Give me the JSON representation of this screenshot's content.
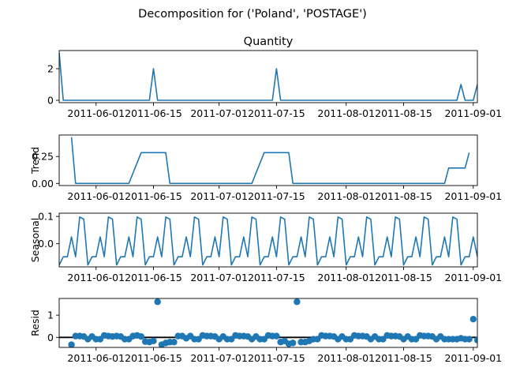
{
  "chart_data": {
    "type": "line",
    "title": "Decomposition for ('Poland', 'POSTAGE')",
    "x_tick_labels": [
      "2011-06-01",
      "2011-06-15",
      "2011-07-01",
      "2011-07-15",
      "2011-08-01",
      "2011-08-15",
      "2011-09-01"
    ],
    "x_start": "2011-05-23",
    "x_end": "2011-09-02",
    "colors": {
      "line": "#1f77b4",
      "zero_line": "#000000"
    },
    "panels": [
      {
        "name": "observed",
        "title": "Quantity",
        "ylabel": "",
        "kind": "line",
        "ylim": [
          -0.15,
          3.15
        ],
        "yticks": [
          0,
          2
        ],
        "ytick_labels": [
          "0",
          "2"
        ],
        "points": [
          [
            "2011-05-23",
            3
          ],
          [
            "2011-05-24",
            0
          ],
          [
            "2011-06-14",
            0
          ],
          [
            "2011-06-15",
            2
          ],
          [
            "2011-06-16",
            0
          ],
          [
            "2011-07-14",
            0
          ],
          [
            "2011-07-15",
            2
          ],
          [
            "2011-07-16",
            0
          ],
          [
            "2011-08-28",
            0
          ],
          [
            "2011-08-29",
            1
          ],
          [
            "2011-08-30",
            0
          ],
          [
            "2011-09-01",
            0
          ],
          [
            "2011-09-02",
            1
          ]
        ]
      },
      {
        "name": "trend",
        "title": "",
        "ylabel": "Trend",
        "kind": "line",
        "ylim": [
          -0.02,
          0.45
        ],
        "yticks": [
          0,
          0.25
        ],
        "ytick_labels": [
          "0.00",
          "0.25"
        ],
        "points": [
          [
            "2011-05-26",
            0.43
          ],
          [
            "2011-05-27",
            0
          ],
          [
            "2011-06-09",
            0
          ],
          [
            "2011-06-12",
            0.286
          ],
          [
            "2011-06-18",
            0.286
          ],
          [
            "2011-06-19",
            0
          ],
          [
            "2011-07-09",
            0
          ],
          [
            "2011-07-12",
            0.286
          ],
          [
            "2011-07-18",
            0.286
          ],
          [
            "2011-07-19",
            0
          ],
          [
            "2011-08-25",
            0
          ],
          [
            "2011-08-26",
            0.143
          ],
          [
            "2011-08-30",
            0.143
          ],
          [
            "2011-08-31",
            0.286
          ]
        ]
      },
      {
        "name": "seasonal",
        "title": "",
        "ylabel": "Seasonal",
        "kind": "line",
        "ylim": [
          -0.085,
          0.112
        ],
        "yticks": [
          0,
          0.1
        ],
        "ytick_labels": [
          "0.0",
          "0.1"
        ],
        "weekly_pattern": [
          -0.078,
          -0.048,
          -0.048,
          0.025,
          -0.048,
          0.098,
          0.09
        ],
        "first_date": "2011-05-23",
        "last_date": "2011-09-02"
      },
      {
        "name": "resid",
        "title": "",
        "ylabel": "Resid",
        "kind": "scatter",
        "ylim": [
          -0.45,
          1.75
        ],
        "yticks": [
          0,
          1
        ],
        "ytick_labels": [
          "0",
          "1"
        ],
        "first_date": "2011-05-26",
        "values": [
          -0.33,
          0.06,
          0.06,
          0.04,
          -0.08,
          0.04,
          -0.08,
          -0.08,
          0.09,
          0.06,
          0.04,
          0.06,
          0.04,
          -0.08,
          -0.08,
          0.06,
          0.09,
          0.04,
          -0.19,
          -0.21,
          -0.16,
          1.6,
          -0.33,
          -0.25,
          -0.21,
          -0.21,
          0.06,
          0.06,
          -0.04,
          0.06,
          -0.08,
          -0.08,
          0.09,
          0.06,
          0.06,
          0.04,
          -0.08,
          0.04,
          -0.08,
          -0.08,
          0.09,
          0.06,
          0.06,
          0.04,
          -0.08,
          0.04,
          -0.08,
          -0.08,
          0.09,
          0.06,
          0.06,
          -0.21,
          -0.16,
          -0.29,
          -0.25,
          1.6,
          -0.21,
          -0.21,
          -0.16,
          -0.08,
          -0.08,
          0.09,
          0.06,
          0.06,
          0.04,
          -0.08,
          0.04,
          -0.08,
          -0.08,
          0.09,
          0.06,
          0.06,
          0.04,
          -0.08,
          0.04,
          -0.08,
          -0.08,
          0.09,
          0.06,
          0.06,
          0.04,
          -0.08,
          0.04,
          -0.08,
          -0.08,
          0.09,
          0.06,
          0.06,
          0.04,
          -0.08,
          0.04,
          -0.08,
          -0.08,
          -0.08,
          -0.08,
          -0.04,
          -0.08,
          -0.08,
          0.82,
          -0.12,
          -0.2,
          -0.33
        ]
      }
    ]
  }
}
